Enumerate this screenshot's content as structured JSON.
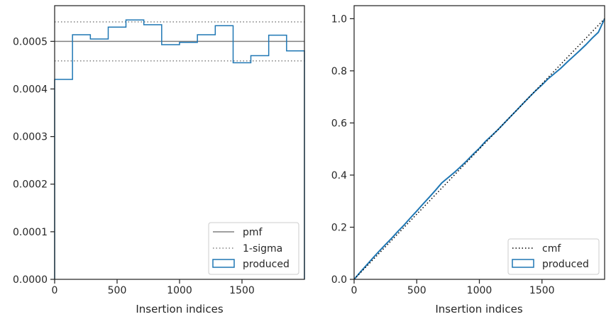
{
  "chart_data": [
    {
      "type": "histogram",
      "xlabel": "Insertion indices",
      "ylabel": "",
      "xlim": [
        0,
        2000
      ],
      "ylim": [
        0,
        0.000575
      ],
      "xticks": [
        0,
        500,
        1000,
        1500
      ],
      "xtick_labels": [
        "0",
        "500",
        "1000",
        "1500"
      ],
      "yticks": [
        0,
        0.0001,
        0.0002,
        0.0003,
        0.0004,
        0.0005
      ],
      "ytick_labels": [
        "0.0000",
        "0.0001",
        "0.0002",
        "0.0003",
        "0.0004",
        "0.0005"
      ],
      "grid": false,
      "legend_position": "lower-right",
      "pmf": 0.0005,
      "sigma_band": [
        0.000459,
        0.000541
      ],
      "bin_edges": [
        0,
        143,
        286,
        429,
        571,
        714,
        857,
        1000,
        1143,
        1286,
        1429,
        1571,
        1714,
        1857,
        2000
      ],
      "values": [
        0.00042,
        0.000514,
        0.000505,
        0.00053,
        0.000545,
        0.000535,
        0.000493,
        0.000498,
        0.000514,
        0.000533,
        0.000455,
        0.00047,
        0.000513,
        0.00048
      ],
      "series": [
        {
          "name": "pmf",
          "color": "#808080",
          "style": "solid"
        },
        {
          "name": "1-sigma",
          "color": "#808080",
          "style": "dotted"
        },
        {
          "name": "produced",
          "color": "#1f77b4",
          "style": "step"
        }
      ]
    },
    {
      "type": "line",
      "xlabel": "Insertion indices",
      "ylabel": "",
      "xlim": [
        0,
        2000
      ],
      "ylim": [
        0,
        1.05
      ],
      "xticks": [
        0,
        500,
        1000,
        1500
      ],
      "xtick_labels": [
        "0",
        "500",
        "1000",
        "1500"
      ],
      "yticks": [
        0,
        0.2,
        0.4,
        0.6,
        0.8,
        1.0
      ],
      "ytick_labels": [
        "0.0",
        "0.2",
        "0.4",
        "0.6",
        "0.8",
        "1.0"
      ],
      "grid": false,
      "legend_position": "lower-right",
      "cmf": {
        "x": [
          0,
          2000
        ],
        "y": [
          0,
          1.0
        ]
      },
      "produced": {
        "x": [
          0,
          50,
          100,
          150,
          200,
          250,
          300,
          350,
          400,
          450,
          500,
          550,
          600,
          650,
          700,
          750,
          800,
          850,
          900,
          950,
          1000,
          1050,
          1100,
          1150,
          1200,
          1250,
          1300,
          1350,
          1400,
          1450,
          1500,
          1550,
          1600,
          1650,
          1700,
          1750,
          1800,
          1850,
          1900,
          1950,
          2000
        ],
        "y": [
          0,
          0.028,
          0.055,
          0.082,
          0.108,
          0.133,
          0.158,
          0.184,
          0.209,
          0.236,
          0.262,
          0.289,
          0.315,
          0.342,
          0.37,
          0.39,
          0.41,
          0.432,
          0.455,
          0.48,
          0.503,
          0.53,
          0.552,
          0.575,
          0.6,
          0.625,
          0.65,
          0.675,
          0.7,
          0.724,
          0.746,
          0.77,
          0.79,
          0.81,
          0.833,
          0.855,
          0.877,
          0.9,
          0.925,
          0.948,
          1.0
        ]
      },
      "series": [
        {
          "name": "cmf",
          "color": "#000000",
          "style": "dotted"
        },
        {
          "name": "produced",
          "color": "#1f77b4",
          "style": "solid"
        }
      ]
    }
  ]
}
